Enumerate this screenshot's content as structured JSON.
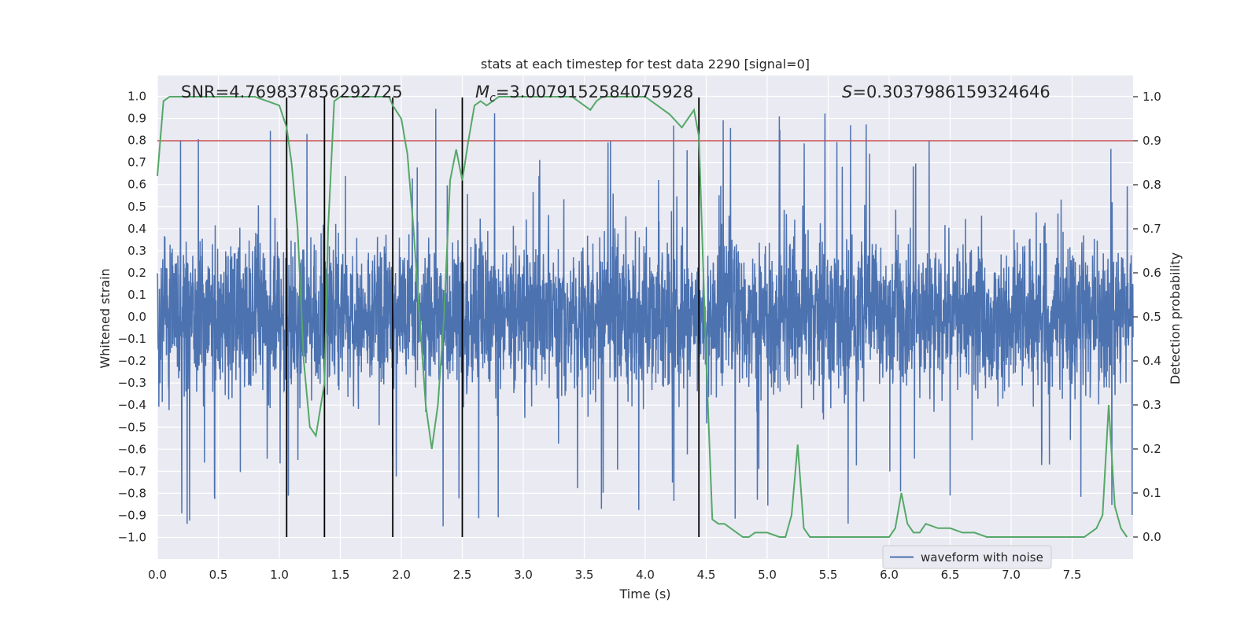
{
  "chart_data": {
    "type": "line",
    "title": "stats at each timestep for test data 2290 [signal=0]",
    "xlabel": "Time (s)",
    "ylabel_left": "Whitened strain",
    "ylabel_right": "Detection probability",
    "xlim": [
      0.0,
      8.0
    ],
    "ylim_left": [
      -1.1,
      1.1
    ],
    "ylim_right": [
      -0.05,
      1.05
    ],
    "x_ticks": [
      "0.0",
      "0.5",
      "1.0",
      "1.5",
      "2.0",
      "2.5",
      "3.0",
      "3.5",
      "4.0",
      "4.5",
      "5.0",
      "5.5",
      "6.0",
      "6.5",
      "7.0",
      "7.5"
    ],
    "y_left_ticks": [
      "1.0",
      "0.9",
      "0.8",
      "0.7",
      "0.6",
      "0.5",
      "0.4",
      "0.3",
      "0.2",
      "0.1",
      "0.0",
      "−0.1",
      "−0.2",
      "−0.3",
      "−0.4",
      "−0.5",
      "−0.6",
      "−0.7",
      "−0.8",
      "−0.9",
      "−1.0"
    ],
    "y_right_ticks": [
      "1.0",
      "0.9",
      "0.8",
      "0.7",
      "0.6",
      "0.5",
      "0.4",
      "0.3",
      "0.2",
      "0.1",
      "0.0"
    ],
    "grid": true,
    "annotations": {
      "snr": "SNR=4.769837856292725",
      "mc_symbol": "M",
      "mc_sub": "c",
      "mc_value": "=3.0079152584075928",
      "s_symbol": "S",
      "s_value": "=0.3037986159324646"
    },
    "threshold": {
      "value": 0.9,
      "axis": "right",
      "color": "#c44e52"
    },
    "vertical_lines": [
      1.06,
      1.37,
      1.93,
      2.5,
      4.44
    ],
    "legend": {
      "label": "waveform with noise",
      "position": "lower-right"
    },
    "series": [
      {
        "name": "waveform with noise",
        "axis": "left",
        "color": "#4c72b0",
        "description": "dense whitened strain samples, roughly +/-0.4 typical with spikes to +/-1.0",
        "approx_range": [
          -1.0,
          1.0
        ]
      },
      {
        "name": "Detection probability",
        "axis": "right",
        "color": "#55a868",
        "x": [
          0.0,
          0.05,
          0.1,
          0.2,
          0.3,
          0.4,
          0.5,
          0.6,
          0.7,
          0.8,
          0.9,
          1.0,
          1.06,
          1.1,
          1.15,
          1.2,
          1.25,
          1.3,
          1.37,
          1.4,
          1.45,
          1.5,
          1.6,
          1.7,
          1.8,
          1.9,
          1.93,
          2.0,
          2.05,
          2.1,
          2.15,
          2.2,
          2.25,
          2.3,
          2.35,
          2.4,
          2.45,
          2.5,
          2.55,
          2.6,
          2.65,
          2.7,
          2.8,
          2.9,
          3.0,
          3.1,
          3.2,
          3.3,
          3.4,
          3.5,
          3.55,
          3.6,
          3.65,
          3.7,
          3.8,
          3.9,
          4.0,
          4.1,
          4.2,
          4.3,
          4.35,
          4.4,
          4.44,
          4.5,
          4.55,
          4.6,
          4.65,
          4.7,
          4.8,
          4.85,
          4.9,
          5.0,
          5.1,
          5.15,
          5.2,
          5.25,
          5.3,
          5.35,
          5.4,
          5.5,
          5.6,
          5.7,
          5.8,
          5.9,
          6.0,
          6.05,
          6.1,
          6.15,
          6.2,
          6.25,
          6.3,
          6.4,
          6.5,
          6.6,
          6.7,
          6.8,
          6.9,
          7.0,
          7.1,
          7.2,
          7.3,
          7.4,
          7.5,
          7.6,
          7.7,
          7.75,
          7.8,
          7.85,
          7.9,
          7.95
        ],
        "values": [
          0.82,
          0.99,
          1.0,
          1.0,
          1.0,
          1.0,
          1.0,
          1.0,
          1.0,
          1.0,
          0.99,
          0.98,
          0.93,
          0.85,
          0.7,
          0.4,
          0.25,
          0.23,
          0.35,
          0.7,
          0.99,
          1.0,
          1.0,
          1.0,
          1.0,
          1.0,
          0.98,
          0.95,
          0.87,
          0.7,
          0.5,
          0.3,
          0.2,
          0.3,
          0.5,
          0.81,
          0.88,
          0.81,
          0.9,
          0.98,
          0.99,
          0.98,
          1.0,
          1.0,
          1.0,
          1.0,
          1.0,
          1.0,
          1.0,
          0.98,
          0.97,
          0.99,
          1.0,
          1.0,
          1.0,
          1.0,
          1.0,
          0.98,
          0.96,
          0.93,
          0.95,
          0.97,
          0.91,
          0.4,
          0.04,
          0.03,
          0.03,
          0.02,
          0.0,
          0.0,
          0.01,
          0.01,
          0.0,
          0.0,
          0.05,
          0.21,
          0.02,
          0.0,
          0.0,
          0.0,
          0.0,
          0.0,
          0.0,
          0.0,
          0.0,
          0.02,
          0.1,
          0.03,
          0.01,
          0.01,
          0.03,
          0.02,
          0.02,
          0.01,
          0.01,
          0.0,
          0.0,
          0.0,
          0.0,
          0.0,
          0.0,
          0.0,
          0.0,
          0.0,
          0.02,
          0.05,
          0.3,
          0.07,
          0.02,
          0.0
        ]
      }
    ]
  }
}
